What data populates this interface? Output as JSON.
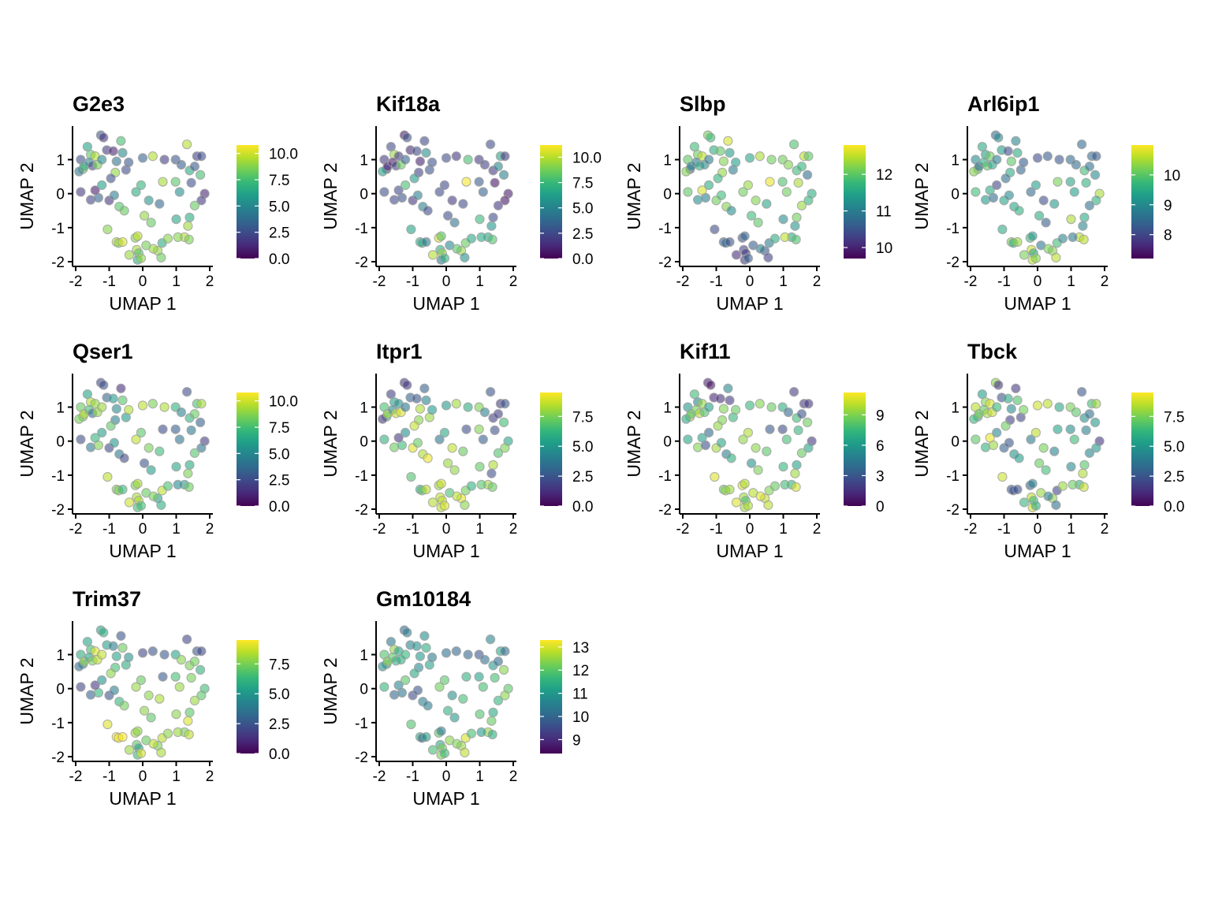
{
  "figure": {
    "colormap": "viridis",
    "colormap_stops": [
      "#440154",
      "#482878",
      "#3e4989",
      "#31688e",
      "#26828e",
      "#1f9e89",
      "#35b779",
      "#6ece58",
      "#b5de2b",
      "#fde725"
    ],
    "point_alpha": 0.6,
    "point_outline_color": "#a0a0a0",
    "background_color": "#ffffff",
    "axis_color": "#000000"
  },
  "chart_data": [
    {
      "type": "scatter",
      "title": "G2e3",
      "xlabel": "UMAP 1",
      "ylabel": "UMAP 2",
      "xlim": [
        -2,
        2
      ],
      "ylim": [
        -2,
        1.8
      ],
      "xticks": [
        -2,
        -1,
        0,
        1,
        2
      ],
      "yticks": [
        -2,
        -1,
        0,
        1
      ],
      "colorbar": {
        "range": [
          0,
          10.8
        ],
        "ticks": [
          "0.0",
          "2.5",
          "5.0",
          "7.5",
          "10.0"
        ],
        "tick_values": [
          0,
          2.5,
          5,
          7.5,
          10
        ]
      },
      "grid": false
    },
    {
      "type": "scatter",
      "title": "Kif18a",
      "xlabel": "UMAP 1",
      "ylabel": "UMAP 2",
      "xlim": [
        -2,
        2
      ],
      "ylim": [
        -2,
        1.8
      ],
      "xticks": [
        -2,
        -1,
        0,
        1,
        2
      ],
      "yticks": [
        -2,
        -1,
        0,
        1
      ],
      "colorbar": {
        "range": [
          0,
          11.2
        ],
        "ticks": [
          "0.0",
          "2.5",
          "5.0",
          "7.5",
          "10.0"
        ],
        "tick_values": [
          0,
          2.5,
          5,
          7.5,
          10
        ]
      },
      "grid": false
    },
    {
      "type": "scatter",
      "title": "Slbp",
      "xlabel": "UMAP 1",
      "ylabel": "UMAP 2",
      "xlim": [
        -2,
        2
      ],
      "ylim": [
        -2,
        1.8
      ],
      "xticks": [
        -2,
        -1,
        0,
        1,
        2
      ],
      "yticks": [
        -2,
        -1,
        0,
        1
      ],
      "colorbar": {
        "range": [
          9.7,
          12.8
        ],
        "ticks": [
          "10",
          "11",
          "12"
        ],
        "tick_values": [
          10,
          11,
          12
        ]
      },
      "grid": false
    },
    {
      "type": "scatter",
      "title": "Arl6ip1",
      "xlabel": "UMAP 1",
      "ylabel": "UMAP 2",
      "xlim": [
        -2,
        2
      ],
      "ylim": [
        -2,
        1.8
      ],
      "xticks": [
        -2,
        -1,
        0,
        1,
        2
      ],
      "yticks": [
        -2,
        -1,
        0,
        1
      ],
      "colorbar": {
        "range": [
          7.2,
          11.0
        ],
        "ticks": [
          "8",
          "9",
          "10"
        ],
        "tick_values": [
          8,
          9,
          10
        ]
      },
      "grid": false
    },
    {
      "type": "scatter",
      "title": "Qser1",
      "xlabel": "UMAP 1",
      "ylabel": "UMAP 2",
      "xlim": [
        -2,
        2
      ],
      "ylim": [
        -2,
        1.8
      ],
      "xticks": [
        -2,
        -1,
        0,
        1,
        2
      ],
      "yticks": [
        -2,
        -1,
        0,
        1
      ],
      "colorbar": {
        "range": [
          0,
          10.8
        ],
        "ticks": [
          "0.0",
          "2.5",
          "5.0",
          "7.5",
          "10.0"
        ],
        "tick_values": [
          0,
          2.5,
          5,
          7.5,
          10
        ]
      },
      "grid": false
    },
    {
      "type": "scatter",
      "title": "Itpr1",
      "xlabel": "UMAP 1",
      "ylabel": "UMAP 2",
      "xlim": [
        -2,
        2
      ],
      "ylim": [
        -2,
        1.8
      ],
      "xticks": [
        -2,
        -1,
        0,
        1,
        2
      ],
      "yticks": [
        -2,
        -1,
        0,
        1
      ],
      "colorbar": {
        "range": [
          0,
          9.5
        ],
        "ticks": [
          "0.0",
          "2.5",
          "5.0",
          "7.5"
        ],
        "tick_values": [
          0,
          2.5,
          5,
          7.5
        ]
      },
      "grid": false
    },
    {
      "type": "scatter",
      "title": "Kif11",
      "xlabel": "UMAP 1",
      "ylabel": "UMAP 2",
      "xlim": [
        -2,
        2
      ],
      "ylim": [
        -2,
        1.8
      ],
      "xticks": [
        -2,
        -1,
        0,
        1,
        2
      ],
      "yticks": [
        -2,
        -1,
        0,
        1
      ],
      "colorbar": {
        "range": [
          0,
          11.2
        ],
        "ticks": [
          "0",
          "3",
          "6",
          "9"
        ],
        "tick_values": [
          0,
          3,
          6,
          9
        ]
      },
      "grid": false
    },
    {
      "type": "scatter",
      "title": "Tbck",
      "xlabel": "UMAP 1",
      "ylabel": "UMAP 2",
      "xlim": [
        -2,
        2
      ],
      "ylim": [
        -2,
        1.8
      ],
      "xticks": [
        -2,
        -1,
        0,
        1,
        2
      ],
      "yticks": [
        -2,
        -1,
        0,
        1
      ],
      "colorbar": {
        "range": [
          0,
          9.5
        ],
        "ticks": [
          "0.0",
          "2.5",
          "5.0",
          "7.5"
        ],
        "tick_values": [
          0,
          2.5,
          5,
          7.5
        ]
      },
      "grid": false
    },
    {
      "type": "scatter",
      "title": "Trim37",
      "xlabel": "UMAP 1",
      "ylabel": "UMAP 2",
      "xlim": [
        -2,
        2
      ],
      "ylim": [
        -2,
        1.8
      ],
      "xticks": [
        -2,
        -1,
        0,
        1,
        2
      ],
      "yticks": [
        -2,
        -1,
        0,
        1
      ],
      "colorbar": {
        "range": [
          0,
          9.5
        ],
        "ticks": [
          "0.0",
          "2.5",
          "5.0",
          "7.5"
        ],
        "tick_values": [
          0,
          2.5,
          5,
          7.5
        ]
      },
      "grid": false
    },
    {
      "type": "scatter",
      "title": "Gm10184",
      "xlabel": "UMAP 1",
      "ylabel": "UMAP 2",
      "xlim": [
        -2,
        2
      ],
      "ylim": [
        -2,
        1.8
      ],
      "xticks": [
        -2,
        -1,
        0,
        1,
        2
      ],
      "yticks": [
        -2,
        -1,
        0,
        1
      ],
      "colorbar": {
        "range": [
          8.4,
          13.3
        ],
        "ticks": [
          "9",
          "10",
          "11",
          "12",
          "13"
        ],
        "tick_values": [
          9,
          10,
          11,
          12,
          13
        ]
      },
      "grid": false
    }
  ],
  "umap_points": [
    [
      -1.78,
      0.72
    ],
    [
      -1.65,
      1.38
    ],
    [
      -1.55,
      1.15
    ],
    [
      -1.42,
      1.1
    ],
    [
      -1.25,
      1.72
    ],
    [
      -1.17,
      1.65
    ],
    [
      -1.07,
      1.28
    ],
    [
      -1.9,
      0.65
    ],
    [
      -1.85,
      1.0
    ],
    [
      -1.75,
      0.8
    ],
    [
      -1.6,
      0.92
    ],
    [
      -1.5,
      0.82
    ],
    [
      -1.35,
      0.85
    ],
    [
      -1.22,
      1.0
    ],
    [
      -0.88,
      1.25
    ],
    [
      -0.65,
      1.55
    ],
    [
      -0.6,
      1.2
    ],
    [
      -0.78,
      0.95
    ],
    [
      -0.82,
      0.62
    ],
    [
      -0.5,
      0.7
    ],
    [
      -0.42,
      0.92
    ],
    [
      -1.85,
      0.05
    ],
    [
      -1.55,
      -0.18
    ],
    [
      -1.32,
      -0.12
    ],
    [
      -1.42,
      0.1
    ],
    [
      -1.22,
      0.25
    ],
    [
      -0.95,
      0.45
    ],
    [
      -1.0,
      -0.2
    ],
    [
      -0.85,
      -0.05
    ],
    [
      -0.7,
      -0.38
    ],
    [
      -0.55,
      -0.5
    ],
    [
      -0.2,
      0.05
    ],
    [
      -0.05,
      0.25
    ],
    [
      -1.05,
      -1.05
    ],
    [
      -0.78,
      -1.42
    ],
    [
      -0.72,
      -1.45
    ],
    [
      -0.6,
      -1.42
    ],
    [
      -0.4,
      -1.8
    ],
    [
      -0.22,
      -1.3
    ],
    [
      -0.15,
      -1.25
    ],
    [
      -0.18,
      -1.65
    ],
    [
      -0.12,
      -1.75
    ],
    [
      -0.15,
      -1.95
    ],
    [
      -0.05,
      -1.9
    ],
    [
      0.1,
      -1.52
    ],
    [
      0.45,
      -1.68
    ],
    [
      0.55,
      -1.88
    ],
    [
      0.58,
      -1.45
    ],
    [
      0.75,
      -1.32
    ],
    [
      0.32,
      -1.62
    ],
    [
      0.0,
      1.05
    ],
    [
      0.3,
      1.1
    ],
    [
      0.65,
      1.0
    ],
    [
      0.98,
      1.0
    ],
    [
      1.15,
      0.85
    ],
    [
      1.32,
      1.45
    ],
    [
      1.4,
      0.68
    ],
    [
      1.55,
      0.8
    ],
    [
      1.62,
      1.1
    ],
    [
      1.75,
      1.1
    ],
    [
      1.85,
      0.0
    ],
    [
      1.75,
      -0.2
    ],
    [
      1.55,
      -0.35
    ],
    [
      1.4,
      -0.7
    ],
    [
      1.35,
      -0.95
    ],
    [
      1.25,
      -1.28
    ],
    [
      1.38,
      -1.35
    ],
    [
      1.05,
      -1.28
    ],
    [
      0.6,
      0.35
    ],
    [
      0.5,
      -0.3
    ],
    [
      0.25,
      -0.85
    ],
    [
      0.05,
      -0.65
    ],
    [
      0.98,
      0.35
    ],
    [
      1.1,
      0.05
    ],
    [
      1.45,
      0.32
    ],
    [
      1.72,
      0.55
    ],
    [
      1.0,
      -0.75
    ],
    [
      0.18,
      -0.2
    ]
  ],
  "panel_values": [
    [
      8.5,
      6.2,
      8.0,
      9.5,
      3.0,
      1.5,
      1.8,
      4.2,
      2.6,
      6.4,
      5.0,
      2.4,
      8.5,
      5.2,
      1.0,
      7.5,
      5.0,
      4.0,
      9.0,
      2.5,
      2.9,
      1.8,
      2.2,
      3.3,
      0.8,
      6.0,
      2.6,
      1.7,
      4.5,
      7.8,
      8.2,
      6.6,
      7.0,
      8.8,
      9.8,
      8.8,
      10.2,
      9.1,
      8.7,
      9.8,
      9.4,
      7.8,
      6.6,
      9.0,
      8.5,
      9.1,
      8.3,
      6.6,
      8.8,
      9.1,
      3.4,
      9.5,
      2.0,
      2.9,
      3.2,
      9.6,
      6.5,
      3.0,
      2.0,
      2.5,
      1.1,
      1.8,
      8.2,
      6.5,
      9.2,
      9.5,
      8.6,
      8.8,
      9.3,
      3.6,
      8.2,
      9.0,
      7.9,
      5.3,
      2.6,
      7.5,
      6.3,
      5.5
    ],
    [
      2.0,
      2.6,
      9.5,
      2.0,
      0.6,
      2.9,
      1.3,
      6.4,
      2.0,
      1.3,
      0.9,
      2.2,
      8.6,
      3.5,
      2.4,
      2.5,
      5.5,
      1.0,
      2.2,
      2.8,
      2.9,
      2.7,
      2.4,
      2.9,
      2.5,
      7.8,
      6.0,
      1.7,
      4.8,
      4.9,
      2.4,
      2.5,
      2.5,
      6.4,
      6.9,
      6.6,
      4.5,
      9.9,
      10.5,
      8.2,
      7.0,
      9.4,
      4.6,
      7.0,
      5.2,
      9.4,
      5.6,
      8.5,
      6.6,
      8.2,
      2.6,
      1.8,
      7.8,
      2.0,
      2.1,
      2.6,
      1.9,
      5.2,
      6.5,
      1.8,
      0.8,
      0.7,
      1.8,
      2.6,
      5.8,
      6.5,
      8.0,
      6.7,
      11.0,
      2.6,
      4.2,
      2.6,
      3.2,
      3.4,
      0.6,
      4.9,
      7.5,
      1.8
    ],
    [
      10.5,
      11.8,
      12.1,
      12.5,
      12.1,
      11.8,
      11.6,
      12.2,
      12.0,
      11.1,
      11.0,
      11.6,
      11.2,
      11.0,
      12.0,
      12.6,
      11.4,
      12.2,
      12.3,
      11.0,
      11.4,
      12.0,
      11.2,
      11.0,
      12.6,
      11.6,
      11.7,
      12.1,
      11.8,
      12.2,
      11.2,
      12.1,
      12.3,
      10.4,
      10.6,
      10.7,
      10.5,
      10.1,
      10.5,
      10.7,
      10.3,
      10.2,
      10.2,
      10.6,
      10.6,
      10.5,
      10.3,
      11.0,
      11.6,
      11.0,
      11.5,
      12.4,
      12.1,
      12.1,
      12.2,
      11.9,
      11.8,
      11.7,
      12.5,
      12.0,
      11.6,
      11.7,
      12.3,
      12.1,
      11.3,
      11.6,
      11.9,
      12.5,
      12.7,
      11.5,
      12.0,
      11.8,
      11.9,
      12.1,
      12.4,
      10.8,
      11.2,
      12.2
    ],
    [
      10.0,
      9.5,
      9.3,
      10.1,
      8.5,
      9.0,
      9.3,
      10.3,
      9.0,
      8.5,
      9.5,
      10.0,
      9.4,
      8.8,
      8.1,
      8.9,
      9.5,
      10.0,
      9.5,
      8.4,
      8.3,
      9.8,
      9.2,
      8.5,
      9.5,
      8.0,
      8.6,
      9.4,
      9.0,
      9.4,
      9.6,
      8.5,
      9.3,
      9.5,
      10.2,
      9.5,
      10.4,
      10.2,
      9.8,
      9.2,
      10.7,
      9.5,
      10.6,
      10.3,
      8.7,
      10.3,
      10.6,
      9.8,
      8.9,
      10.2,
      8.1,
      8.3,
      8.2,
      8.5,
      8.5,
      8.5,
      9.8,
      8.6,
      8.5,
      8.3,
      10.5,
      9.6,
      8.6,
      9.5,
      8.9,
      10.6,
      10.6,
      8.7,
      10.2,
      9.2,
      8.3,
      9.5,
      9.4,
      9.3,
      9.6,
      9.0,
      10.5,
      8.1
    ],
    [
      8.5,
      6.2,
      9.5,
      9.0,
      2.4,
      2.6,
      3.5,
      8.5,
      8.2,
      9.6,
      7.5,
      3.8,
      9.0,
      9.2,
      5.8,
      1.4,
      7.8,
      5.0,
      4.5,
      5.8,
      9.5,
      2.5,
      4.5,
      8.7,
      7.0,
      6.0,
      8.0,
      2.4,
      5.6,
      4.3,
      2.2,
      9.8,
      7.9,
      9.7,
      8.6,
      8.7,
      7.2,
      10.0,
      8.5,
      9.3,
      9.4,
      9.4,
      7.4,
      7.4,
      8.2,
      5.9,
      6.7,
      9.7,
      7.6,
      8.5,
      9.7,
      8.6,
      9.5,
      6.9,
      4.8,
      2.5,
      7.0,
      8.2,
      7.6,
      9.3,
      1.9,
      4.0,
      7.8,
      6.5,
      8.6,
      5.8,
      8.3,
      5.1,
      2.4,
      7.3,
      5.9,
      2.8,
      3.2,
      4.0,
      4.3,
      3.3,
      6.3,
      8.5
    ],
    [
      6.4,
      1.8,
      5.2,
      4.8,
      1.5,
      1.6,
      3.0,
      1.5,
      6.7,
      8.0,
      4.5,
      8.7,
      9.0,
      3.6,
      2.5,
      2.9,
      4.2,
      8.3,
      7.8,
      8.0,
      5.1,
      6.0,
      7.3,
      6.4,
      1.5,
      4.6,
      8.6,
      9.0,
      7.2,
      8.3,
      9.2,
      3.6,
      5.6,
      6.8,
      5.5,
      7.0,
      8.5,
      8.4,
      8.0,
      8.8,
      8.6,
      8.6,
      8.5,
      8.9,
      6.7,
      9.1,
      7.8,
      7.4,
      6.0,
      8.5,
      5.0,
      8.1,
      5.8,
      7.6,
      4.0,
      2.4,
      1.8,
      1.8,
      1.7,
      2.5,
      5.5,
      7.6,
      6.8,
      8.3,
      2.3,
      8.1,
      7.2,
      6.9,
      2.2,
      7.2,
      7.9,
      8.0,
      7.7,
      2.8,
      2.3,
      6.5,
      7.1,
      8.6
    ],
    [
      9.5,
      7.6,
      5.0,
      9.3,
      1.0,
      0.5,
      1.2,
      6.7,
      5.8,
      8.2,
      8.8,
      9.8,
      8.0,
      6.3,
      1.5,
      5.0,
      1.8,
      9.0,
      9.0,
      7.3,
      8.5,
      6.5,
      9.0,
      2.7,
      6.3,
      3.8,
      9.3,
      9.6,
      6.5,
      4.7,
      7.0,
      9.3,
      9.8,
      10.6,
      8.5,
      9.3,
      9.5,
      10.6,
      10.5,
      9.9,
      9.5,
      7.9,
      9.5,
      9.8,
      10.0,
      10.2,
      10.0,
      9.0,
      8.5,
      10.6,
      7.3,
      9.0,
      8.5,
      6.9,
      3.8,
      2.0,
      7.6,
      2.8,
      2.0,
      1.8,
      1.8,
      6.5,
      8.5,
      6.4,
      9.5,
      7.3,
      10.5,
      7.7,
      3.0,
      8.2,
      8.9,
      5.6,
      2.6,
      7.7,
      7.2,
      8.6,
      7.3,
      9.2
    ],
    [
      6.2,
      5.2,
      7.7,
      9.0,
      7.8,
      1.5,
      2.5,
      6.3,
      8.5,
      7.5,
      7.2,
      8.2,
      8.7,
      6.3,
      5.6,
      1.6,
      6.8,
      4.5,
      1.8,
      2.0,
      7.4,
      7.0,
      6.1,
      8.0,
      9.2,
      4.4,
      7.3,
      3.0,
      2.5,
      4.8,
      5.2,
      3.8,
      8.5,
      8.8,
      2.4,
      2.5,
      2.3,
      6.2,
      3.0,
      4.2,
      8.5,
      6.5,
      8.8,
      6.0,
      8.0,
      7.8,
      3.5,
      1.9,
      8.0,
      4.0,
      8.8,
      8.5,
      5.7,
      7.5,
      7.0,
      2.6,
      4.8,
      3.4,
      6.5,
      8.0,
      1.4,
      4.9,
      4.3,
      6.9,
      8.3,
      6.1,
      8.7,
      7.3,
      5.4,
      4.2,
      6.5,
      7.2,
      4.6,
      6.4,
      4.0,
      5.0,
      4.5,
      7.5
    ],
    [
      4.4,
      5.5,
      6.5,
      9.0,
      5.5,
      5.8,
      5.4,
      3.5,
      5.8,
      7.8,
      5.5,
      7.5,
      8.5,
      8.6,
      3.8,
      2.5,
      7.3,
      5.5,
      6.6,
      5.8,
      4.8,
      2.0,
      3.0,
      6.2,
      1.5,
      4.8,
      7.8,
      2.4,
      4.0,
      6.2,
      7.4,
      8.0,
      7.2,
      9.0,
      9.5,
      9.2,
      9.5,
      8.0,
      8.2,
      7.8,
      7.0,
      5.3,
      6.4,
      9.0,
      7.2,
      7.5,
      8.2,
      8.5,
      7.8,
      8.5,
      2.0,
      2.5,
      2.6,
      5.5,
      7.7,
      2.0,
      7.5,
      7.4,
      2.6,
      2.0,
      6.5,
      7.0,
      8.0,
      7.0,
      9.0,
      7.5,
      8.5,
      8.0,
      2.7,
      8.3,
      7.0,
      7.8,
      6.6,
      8.0,
      7.5,
      6.0,
      7.8,
      7.8
    ],
    [
      11.0,
      10.3,
      12.5,
      11.2,
      10.1,
      10.4,
      10.6,
      10.8,
      11.9,
      12.4,
      12.0,
      11.5,
      11.4,
      11.6,
      10.8,
      10.8,
      11.4,
      11.0,
      10.7,
      11.2,
      10.4,
      11.6,
      10.0,
      10.3,
      10.6,
      12.0,
      11.3,
      9.5,
      9.7,
      10.5,
      10.4,
      12.2,
      12.0,
      11.9,
      11.5,
      10.0,
      11.0,
      11.8,
      12.0,
      10.4,
      11.3,
      12.3,
      12.3,
      11.7,
      12.4,
      12.5,
      12.8,
      13.0,
      11.8,
      12.3,
      10.2,
      10.0,
      10.0,
      9.7,
      10.2,
      10.6,
      11.0,
      10.1,
      11.3,
      10.1,
      12.0,
      12.4,
      11.6,
      11.3,
      12.1,
      12.5,
      11.4,
      11.0,
      11.5,
      11.8,
      11.0,
      11.5,
      11.2,
      11.8,
      11.8,
      12.4,
      11.9,
      10.8
    ]
  ]
}
